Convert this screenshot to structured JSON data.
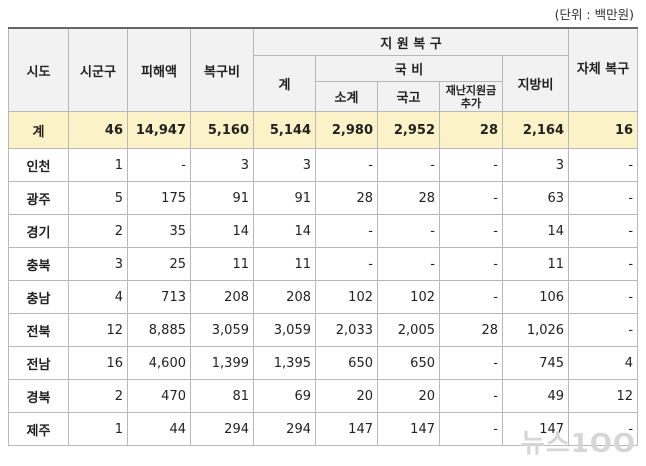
{
  "unit_note": "(단위 : 백만원)",
  "headers": {
    "region": "시도",
    "districts": "시군구",
    "damage": "피해액",
    "recovery_cost": "복구비",
    "support_group": "지 원 복 구",
    "support_total": "계",
    "national_group": "국 비",
    "national_subtotal": "소계",
    "national_treasury": "국고",
    "disaster_extra": "재난지원금 추가",
    "local_cost": "지방비",
    "self_recovery": "자체 복구"
  },
  "rows": [
    {
      "region": "계",
      "districts": "46",
      "damage": "14,947",
      "recovery_cost": "5,160",
      "support_total": "5,144",
      "national_subtotal": "2,980",
      "national_treasury": "2,952",
      "disaster_extra": "28",
      "local_cost": "2,164",
      "self_recovery": "16"
    },
    {
      "region": "인천",
      "districts": "1",
      "damage": "-",
      "recovery_cost": "3",
      "support_total": "3",
      "national_subtotal": "-",
      "national_treasury": "-",
      "disaster_extra": "-",
      "local_cost": "3",
      "self_recovery": "-"
    },
    {
      "region": "광주",
      "districts": "5",
      "damage": "175",
      "recovery_cost": "91",
      "support_total": "91",
      "national_subtotal": "28",
      "national_treasury": "28",
      "disaster_extra": "-",
      "local_cost": "63",
      "self_recovery": "-"
    },
    {
      "region": "경기",
      "districts": "2",
      "damage": "35",
      "recovery_cost": "14",
      "support_total": "14",
      "national_subtotal": "-",
      "national_treasury": "-",
      "disaster_extra": "-",
      "local_cost": "14",
      "self_recovery": "-"
    },
    {
      "region": "충북",
      "districts": "3",
      "damage": "25",
      "recovery_cost": "11",
      "support_total": "11",
      "national_subtotal": "-",
      "national_treasury": "-",
      "disaster_extra": "-",
      "local_cost": "11",
      "self_recovery": "-"
    },
    {
      "region": "충남",
      "districts": "4",
      "damage": "713",
      "recovery_cost": "208",
      "support_total": "208",
      "national_subtotal": "102",
      "national_treasury": "102",
      "disaster_extra": "-",
      "local_cost": "106",
      "self_recovery": "-"
    },
    {
      "region": "전북",
      "districts": "12",
      "damage": "8,885",
      "recovery_cost": "3,059",
      "support_total": "3,059",
      "national_subtotal": "2,033",
      "national_treasury": "2,005",
      "disaster_extra": "28",
      "local_cost": "1,026",
      "self_recovery": "-"
    },
    {
      "region": "전남",
      "districts": "16",
      "damage": "4,600",
      "recovery_cost": "1,399",
      "support_total": "1,395",
      "national_subtotal": "650",
      "national_treasury": "650",
      "disaster_extra": "-",
      "local_cost": "745",
      "self_recovery": "4"
    },
    {
      "region": "경북",
      "districts": "2",
      "damage": "470",
      "recovery_cost": "81",
      "support_total": "69",
      "national_subtotal": "20",
      "national_treasury": "20",
      "disaster_extra": "-",
      "local_cost": "49",
      "self_recovery": "12"
    },
    {
      "region": "제주",
      "districts": "1",
      "damage": "44",
      "recovery_cost": "294",
      "support_total": "294",
      "national_subtotal": "147",
      "national_treasury": "147",
      "disaster_extra": "-",
      "local_cost": "147",
      "self_recovery": "-"
    }
  ],
  "watermark": "뉴스1OO"
}
